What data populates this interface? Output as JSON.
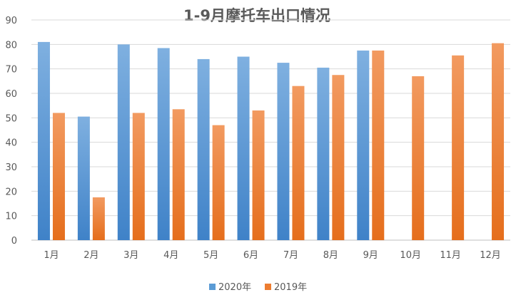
{
  "chart_data": {
    "type": "bar",
    "title": "1-9月摩托车出口情况",
    "xlabel": "",
    "ylabel": "",
    "categories": [
      "1月",
      "2月",
      "3月",
      "4月",
      "5月",
      "6月",
      "7月",
      "8月",
      "9月",
      "10月",
      "11月",
      "12月"
    ],
    "series": [
      {
        "name": "2020年",
        "color": "#5B9BD5",
        "values": [
          81,
          50.5,
          80,
          78.5,
          74,
          75,
          72.5,
          70.5,
          77.5,
          null,
          null,
          null
        ]
      },
      {
        "name": "2019年",
        "color": "#ED7D31",
        "values": [
          52,
          17.5,
          52,
          53.5,
          47,
          53,
          63,
          67.5,
          77.5,
          67,
          75.5,
          80.5
        ]
      }
    ],
    "ylim": [
      0,
      90
    ],
    "yticks": [
      0,
      10,
      20,
      30,
      40,
      50,
      60,
      70,
      80,
      90
    ],
    "grid": true,
    "legend_position": "bottom"
  }
}
